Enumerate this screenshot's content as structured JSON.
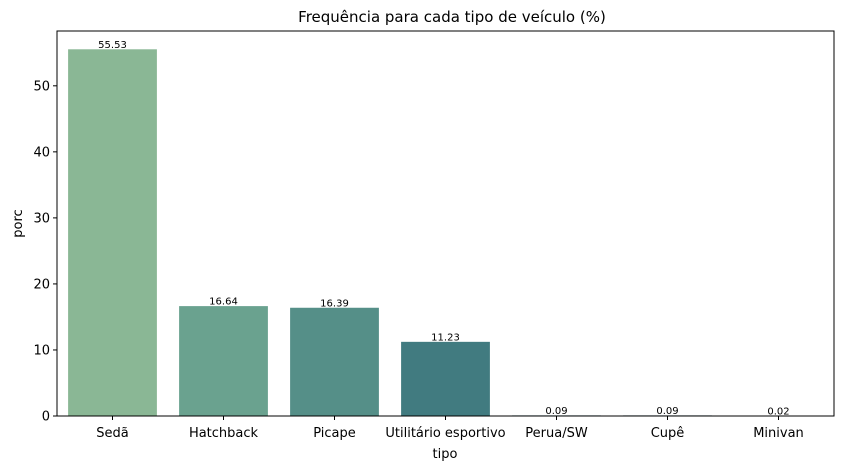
{
  "chart_data": {
    "type": "bar",
    "title": "Frequência para cada tipo de veículo (%)",
    "xlabel": "tipo",
    "ylabel": "porc",
    "categories": [
      "Sedã",
      "Hatchback",
      "Picape",
      "Utilitário esportivo",
      "Perua/SW",
      "Cupê",
      "Minivan"
    ],
    "values": [
      55.53,
      16.64,
      16.39,
      11.23,
      0.09,
      0.09,
      0.02
    ],
    "value_labels": [
      "55.53",
      "16.64",
      "16.39",
      "11.23",
      "0.09",
      "0.09",
      "0.02"
    ],
    "colors": [
      "#8ab795",
      "#6aa28f",
      "#558f88",
      "#417b80",
      "#336a79",
      "#2a5a72",
      "#1f496a"
    ],
    "ylim": [
      0,
      58.3
    ],
    "yticks": [
      0,
      10,
      20,
      30,
      40,
      50
    ],
    "grid": false,
    "legend": "none"
  }
}
